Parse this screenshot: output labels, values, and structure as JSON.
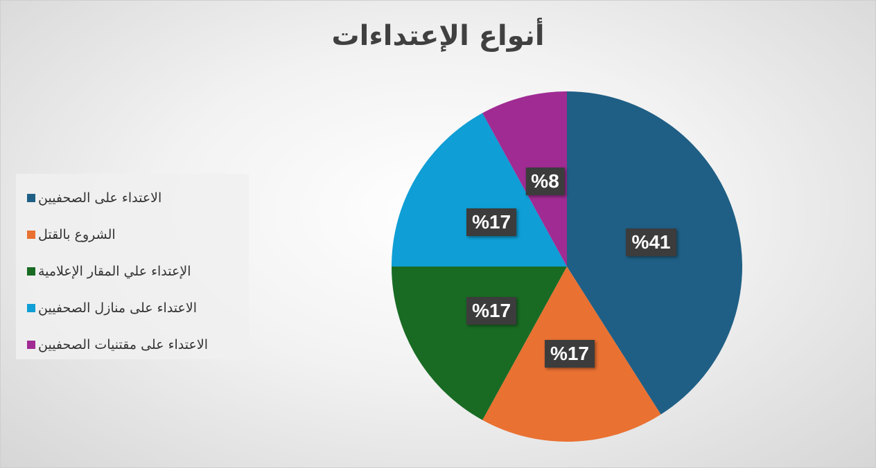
{
  "chart_data": {
    "type": "pie",
    "title": "أنواع الإعتداءات",
    "legend_position": "left",
    "slices": [
      {
        "label": "الاعتداء على الصحفيين",
        "value": 41,
        "data_label": "%41",
        "color": "#1f5f85"
      },
      {
        "label": "الشروع بالقتل",
        "value": 17,
        "data_label": "%17",
        "color": "#e97132"
      },
      {
        "label": "الإعتداء علي المقار الإعلامية",
        "value": 17,
        "data_label": "%17",
        "color": "#196b24"
      },
      {
        "label": "الاعتداء على منازل الصحفيين",
        "value": 17,
        "data_label": "%17",
        "color": "#0f9ed5"
      },
      {
        "label": "الاعتداء على مقتنيات الصحفيين",
        "value": 8,
        "data_label": "%8",
        "color": "#a02b93"
      }
    ]
  }
}
